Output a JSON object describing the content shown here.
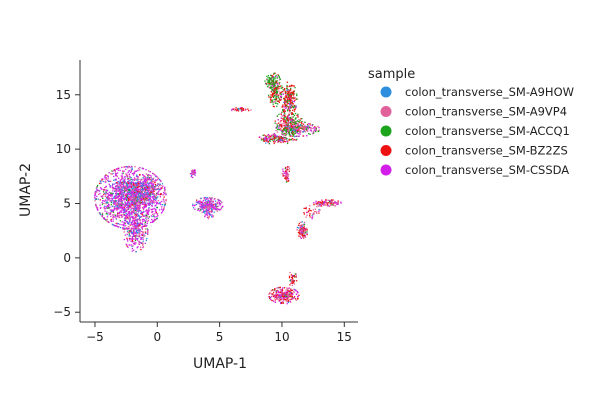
{
  "chart_data": {
    "type": "scatter",
    "xlabel": "UMAP-1",
    "ylabel": "UMAP-2",
    "xlim": [
      -6.2,
      16.1
    ],
    "ylim": [
      -5.9,
      18.2
    ],
    "xticks": [
      -5,
      0,
      5,
      10,
      15
    ],
    "yticks": [
      -5,
      0,
      5,
      10,
      15
    ],
    "grid": false,
    "legend": {
      "title": "sample",
      "placement": "right",
      "entries": [
        {
          "name": "colon_transverse_SM-A9HOW",
          "color": "#2e8fde"
        },
        {
          "name": "colon_transverse_SM-A9VP4",
          "color": "#e0609a"
        },
        {
          "name": "colon_transverse_SM-ACCQ1",
          "color": "#1ca41c"
        },
        {
          "name": "colon_transverse_SM-BZ2ZS",
          "color": "#ee1111"
        },
        {
          "name": "colon_transverse_SM-CSSDA",
          "color": "#d11ee8"
        }
      ]
    },
    "clusters": [
      {
        "cx": -2.2,
        "cy": 5.6,
        "sx": 1.3,
        "sy": 1.3,
        "n": 1800,
        "w": [
          0.15,
          0.2,
          0.05,
          0.05,
          0.55
        ]
      },
      {
        "cx": -1.8,
        "cy": 2.6,
        "sx": 0.45,
        "sy": 0.9,
        "n": 320,
        "w": [
          0.15,
          0.25,
          0.05,
          0.05,
          0.5
        ]
      },
      {
        "cx": -1.2,
        "cy": 6.4,
        "sx": 0.8,
        "sy": 0.6,
        "n": 250,
        "w": [
          0.3,
          0.3,
          0.05,
          0.1,
          0.25
        ]
      },
      {
        "cx": 4.0,
        "cy": 4.9,
        "sx": 0.55,
        "sy": 0.32,
        "n": 260,
        "w": [
          0.2,
          0.25,
          0.05,
          0.05,
          0.45
        ]
      },
      {
        "cx": 4.1,
        "cy": 4.2,
        "sx": 0.2,
        "sy": 0.25,
        "n": 40,
        "w": [
          0.2,
          0.3,
          0.05,
          0.05,
          0.4
        ]
      },
      {
        "cx": 2.8,
        "cy": 7.9,
        "sx": 0.1,
        "sy": 0.2,
        "n": 40,
        "w": [
          0.1,
          0.5,
          0.05,
          0.05,
          0.3
        ]
      },
      {
        "cx": 6.6,
        "cy": 13.7,
        "sx": 0.4,
        "sy": 0.08,
        "n": 40,
        "w": [
          0.05,
          0.3,
          0.05,
          0.55,
          0.05
        ]
      },
      {
        "cx": 10.3,
        "cy": 7.8,
        "sx": 0.15,
        "sy": 0.35,
        "n": 70,
        "w": [
          0.1,
          0.35,
          0.05,
          0.3,
          0.2
        ]
      },
      {
        "cx": 13.6,
        "cy": 5.1,
        "sx": 0.5,
        "sy": 0.14,
        "n": 110,
        "w": [
          0.05,
          0.4,
          0.05,
          0.2,
          0.3
        ]
      },
      {
        "cx": 12.4,
        "cy": 4.3,
        "sx": 0.35,
        "sy": 0.3,
        "n": 40,
        "w": [
          0.05,
          0.4,
          0.05,
          0.3,
          0.2
        ]
      },
      {
        "cx": 11.6,
        "cy": 2.6,
        "sx": 0.2,
        "sy": 0.35,
        "n": 110,
        "w": [
          0.05,
          0.35,
          0.05,
          0.35,
          0.2
        ]
      },
      {
        "cx": 10.1,
        "cy": -3.4,
        "sx": 0.55,
        "sy": 0.35,
        "n": 280,
        "w": [
          0.05,
          0.25,
          0.05,
          0.4,
          0.25
        ]
      },
      {
        "cx": 10.8,
        "cy": -1.9,
        "sx": 0.15,
        "sy": 0.35,
        "n": 50,
        "w": [
          0.05,
          0.2,
          0.1,
          0.5,
          0.15
        ]
      },
      {
        "cx": 9.6,
        "cy": 11.0,
        "sx": 0.7,
        "sy": 0.22,
        "n": 200,
        "w": [
          0.05,
          0.2,
          0.25,
          0.25,
          0.25
        ]
      },
      {
        "cx": 11.2,
        "cy": 11.9,
        "sx": 0.8,
        "sy": 0.3,
        "n": 260,
        "w": [
          0.05,
          0.25,
          0.25,
          0.2,
          0.25
        ]
      },
      {
        "cx": 10.5,
        "cy": 12.5,
        "sx": 0.5,
        "sy": 0.5,
        "n": 220,
        "w": [
          0.05,
          0.2,
          0.35,
          0.3,
          0.1
        ]
      },
      {
        "cx": 10.5,
        "cy": 14.7,
        "sx": 0.3,
        "sy": 0.7,
        "n": 240,
        "w": [
          0.02,
          0.1,
          0.25,
          0.55,
          0.08
        ]
      },
      {
        "cx": 9.4,
        "cy": 15.5,
        "sx": 0.25,
        "sy": 0.7,
        "n": 200,
        "w": [
          0.02,
          0.1,
          0.5,
          0.35,
          0.03
        ]
      },
      {
        "cx": 9.0,
        "cy": 16.3,
        "sx": 0.2,
        "sy": 0.25,
        "n": 60,
        "w": [
          0.02,
          0.05,
          0.7,
          0.2,
          0.03
        ]
      }
    ]
  }
}
